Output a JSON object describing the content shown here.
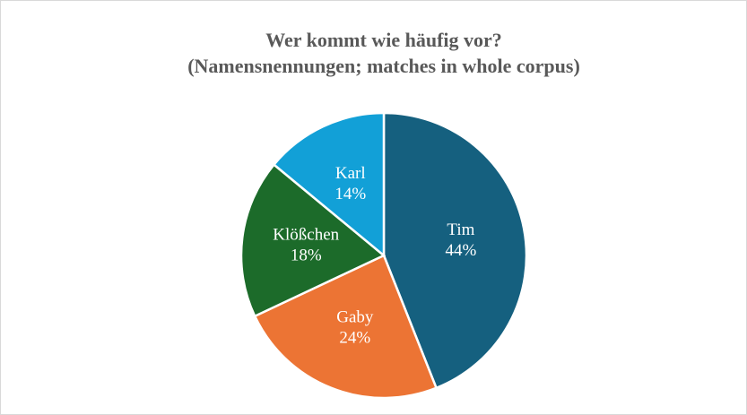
{
  "chart_data": {
    "type": "pie",
    "title": "Wer kommt wie häufig vor?",
    "subtitle": "(Namensnennungen; matches in whole corpus)",
    "categories": [
      "Tim",
      "Gaby",
      "Klößchen",
      "Karl"
    ],
    "values": [
      44,
      24,
      18,
      14
    ],
    "value_labels": [
      "44%",
      "24%",
      "18%",
      "14%"
    ],
    "colors": [
      "#15607f",
      "#ec7434",
      "#1c6b2a",
      "#12a0d7"
    ]
  }
}
